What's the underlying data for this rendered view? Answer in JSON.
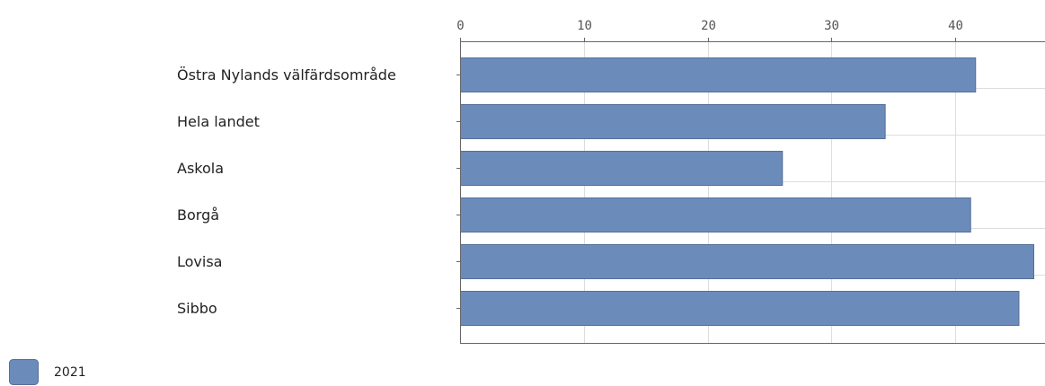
{
  "chart_data": {
    "type": "bar",
    "orientation": "horizontal",
    "categories": [
      "Östra Nylands välfärdsområde",
      "Hela landet",
      "Askola",
      "Borgå",
      "Lovisa",
      "Sibbo"
    ],
    "series": [
      {
        "name": "2021",
        "values": [
          41.6,
          34.3,
          26.0,
          41.2,
          46.3,
          45.1
        ],
        "color": "#6b8cbb"
      }
    ],
    "xlim": [
      0,
      47.5
    ],
    "xticks": [
      0,
      10,
      20,
      30,
      40
    ],
    "title": "",
    "xlabel": "",
    "ylabel": "",
    "grid": true,
    "axis_position": "top",
    "legend_position": "bottom-left"
  }
}
